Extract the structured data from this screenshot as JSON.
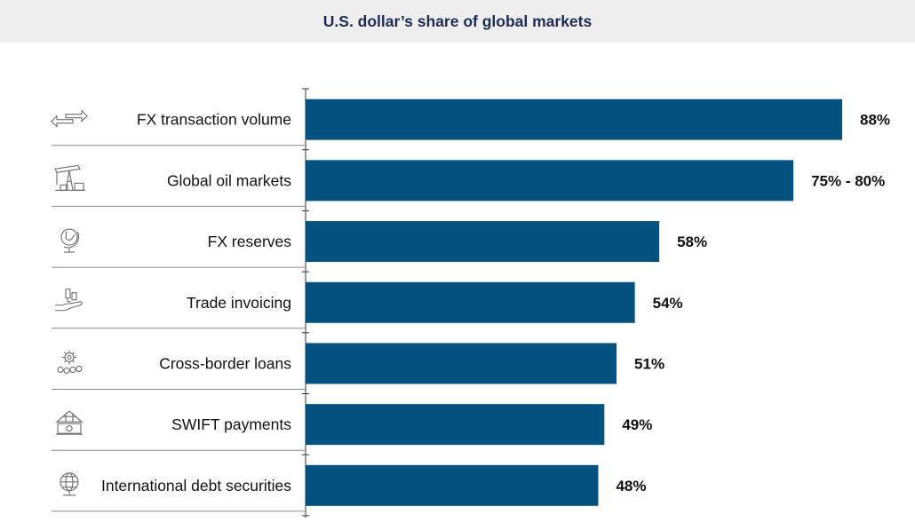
{
  "chart_data": {
    "type": "bar",
    "orientation": "horizontal",
    "title": "U.S. dollar’s share of global markets",
    "categories": [
      "FX transaction volume",
      "Global oil markets",
      "FX reserves",
      "Trade invoicing",
      "Cross-border loans",
      "SWIFT payments",
      "International debt securities"
    ],
    "values": [
      88,
      80,
      58,
      54,
      51,
      49,
      48
    ],
    "ranges": [
      null,
      [
        75,
        80
      ],
      null,
      null,
      null,
      null,
      null
    ],
    "value_labels": [
      "88%",
      "75% - 80%",
      "58%",
      "54%",
      "51%",
      "49%",
      "48%"
    ],
    "icons": [
      "exchange-arrows-icon",
      "oil-pump-icon",
      "globe-stand-icon",
      "hand-coins-icon",
      "gear-coins-icon",
      "bank-building-icon",
      "wire-globe-icon"
    ],
    "xlim": [
      0,
      88
    ],
    "bar_color": "#03527f",
    "grid": false,
    "legend": "none"
  }
}
